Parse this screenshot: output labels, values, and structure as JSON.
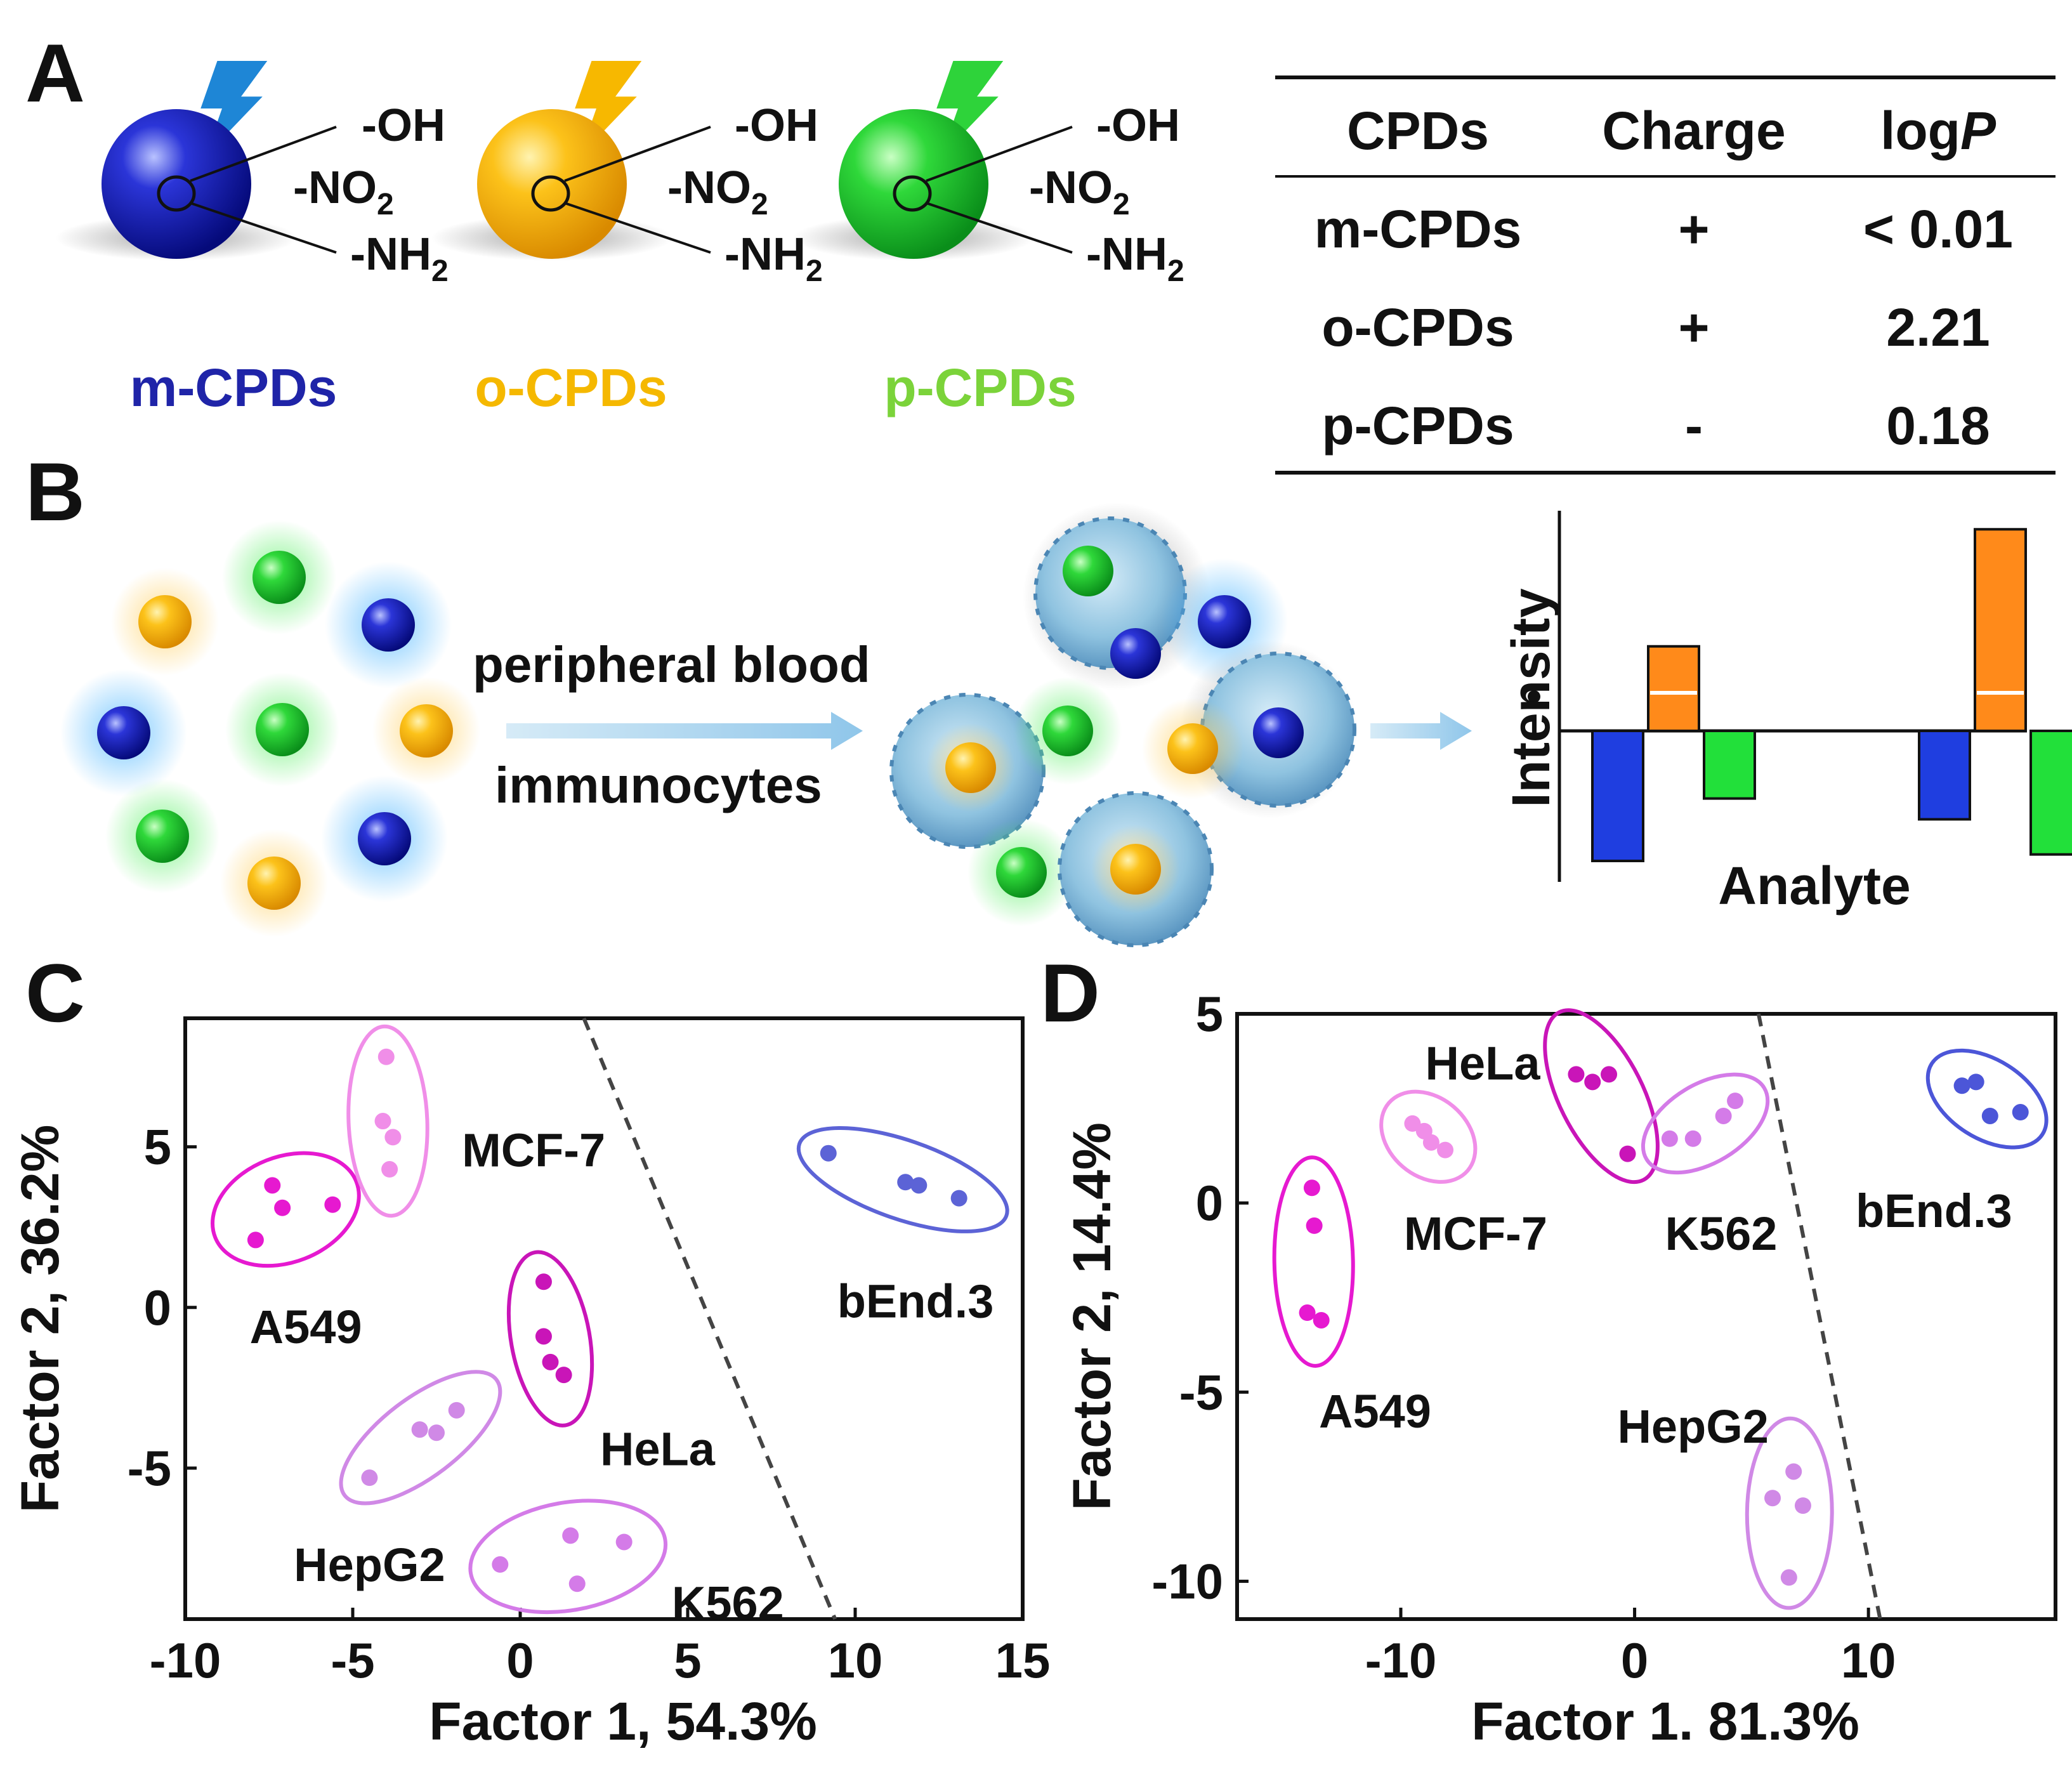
{
  "panels": {
    "a": "A",
    "b": "B",
    "c": "C",
    "d": "D"
  },
  "groups": {
    "oh": "-OH",
    "no2": "-NO",
    "nh2": "-NH",
    "sub": "2"
  },
  "probes": [
    {
      "name": "m-CPDs",
      "color": "#1f24a8"
    },
    {
      "name": "o-CPDs",
      "color": "#f5b800"
    },
    {
      "name": "p-CPDs",
      "color": "#7bd33a"
    }
  ],
  "table": {
    "headers": {
      "cpds": "CPDs",
      "charge": "Charge",
      "logp_prefix": "log",
      "logp_italic": "P"
    },
    "rows": [
      {
        "name": "m-CPDs",
        "color": "#1a29c9",
        "charge": "+",
        "logp": "< 0.01"
      },
      {
        "name": "o-CPDs",
        "color": "#f5b800",
        "charge": "+",
        "logp": "2.21"
      },
      {
        "name": "p-CPDs",
        "color": "#0fbf62",
        "charge": "-",
        "logp": "0.18"
      }
    ]
  },
  "scheme": {
    "flow_label_1": "peripheral blood",
    "flow_label_2": "immunocytes",
    "ylabel": "Intensity",
    "xlabel": "Analyte",
    "bar_colors": {
      "m": "#1f3ee0",
      "o": "#ff8a1a",
      "p": "#22e03a"
    },
    "mini_bars": [
      {
        "group": 1,
        "m": -1.0,
        "o": 0.65,
        "p": -0.52
      },
      {
        "group": 2,
        "m": -0.68,
        "o": 1.55,
        "p": -0.95
      }
    ]
  },
  "chart_data": [
    {
      "type": "scatter",
      "panel": "C",
      "xlabel": "Factor 1, 54.3%",
      "ylabel": "Factor 2, 36.2%",
      "xlim": [
        -10,
        15
      ],
      "ylim": [
        -9.7,
        9
      ],
      "xticks": [
        "-10",
        "-5",
        "0",
        "5",
        "10",
        "15"
      ],
      "yticks": [
        "-5",
        "0",
        "5"
      ],
      "yticks_values": [
        -5,
        0,
        5
      ],
      "xticks_values": [
        -10,
        -5,
        0,
        5,
        10,
        15
      ],
      "divider": {
        "x1": 1.9,
        "y1": 9,
        "x2": 9.4,
        "y2": -9.7
      },
      "series": [
        {
          "name": "A549",
          "color": "#e619d0",
          "points": [
            [
              -7.4,
              3.8
            ],
            [
              -7.1,
              3.1
            ],
            [
              -5.6,
              3.2
            ],
            [
              -7.9,
              2.1
            ]
          ]
        },
        {
          "name": "MCF-7",
          "color": "#f08ee8",
          "points": [
            [
              -4.0,
              7.8
            ],
            [
              -4.1,
              5.8
            ],
            [
              -3.8,
              5.3
            ],
            [
              -3.9,
              4.3
            ]
          ]
        },
        {
          "name": "bEnd.3",
          "color": "#5c63d6",
          "points": [
            [
              9.2,
              4.8
            ],
            [
              11.5,
              3.9
            ],
            [
              11.9,
              3.8
            ],
            [
              13.1,
              3.4
            ]
          ]
        },
        {
          "name": "HeLa",
          "color": "#c915b8",
          "points": [
            [
              0.7,
              0.8
            ],
            [
              0.7,
              -0.9
            ],
            [
              0.9,
              -1.7
            ],
            [
              1.3,
              -2.1
            ]
          ]
        },
        {
          "name": "HepG2",
          "color": "#d089e6",
          "points": [
            [
              -1.9,
              -3.2
            ],
            [
              -3.0,
              -3.8
            ],
            [
              -2.5,
              -3.9
            ],
            [
              -4.5,
              -5.3
            ]
          ]
        },
        {
          "name": "K562",
          "color": "#d47be8",
          "points": [
            [
              -0.6,
              -8.0
            ],
            [
              1.5,
              -7.1
            ],
            [
              3.1,
              -7.3
            ],
            [
              1.7,
              -8.6
            ]
          ]
        }
      ],
      "labels": [
        {
          "text": "A549",
          "x": -6.4,
          "y": -0.6
        },
        {
          "text": "MCF-7",
          "x": 0.4,
          "y": 4.9
        },
        {
          "text": "bEnd.3",
          "x": 11.8,
          "y": 0.2
        },
        {
          "text": "HeLa",
          "x": 4.1,
          "y": -4.4
        },
        {
          "text": "HepG2",
          "x": -4.5,
          "y": -8.0
        },
        {
          "text": "K562",
          "x": 6.2,
          "y": -9.2
        }
      ]
    },
    {
      "type": "scatter",
      "panel": "D",
      "xlabel": "Factor 1. 81.3%",
      "ylabel": "Factor 2, 14.4%",
      "xlim": [
        -17,
        18
      ],
      "ylim": [
        -11,
        5
      ],
      "xticks": [
        "-10",
        "0",
        "10"
      ],
      "xticks_values": [
        -10,
        0,
        10
      ],
      "yticks": [
        "-10",
        "-5",
        "0",
        "5"
      ],
      "yticks_values": [
        -10,
        -5,
        0,
        5
      ],
      "divider": {
        "x1": 5.3,
        "y1": 5,
        "x2": 10.5,
        "y2": -11
      },
      "series": [
        {
          "name": "A549",
          "color": "#e619d0",
          "points": [
            [
              -13.8,
              0.4
            ],
            [
              -13.7,
              -0.6
            ],
            [
              -14.0,
              -2.9
            ],
            [
              -13.4,
              -3.1
            ]
          ]
        },
        {
          "name": "MCF-7",
          "color": "#f08ee8",
          "points": [
            [
              -9.5,
              2.1
            ],
            [
              -9.0,
              1.9
            ],
            [
              -8.7,
              1.6
            ],
            [
              -8.1,
              1.4
            ]
          ]
        },
        {
          "name": "HeLa",
          "color": "#c915b8",
          "points": [
            [
              -2.5,
              3.4
            ],
            [
              -1.8,
              3.2
            ],
            [
              -1.1,
              3.4
            ],
            [
              -0.3,
              1.3
            ]
          ]
        },
        {
          "name": "K562",
          "color": "#d47be8",
          "points": [
            [
              4.3,
              2.7
            ],
            [
              3.8,
              2.3
            ],
            [
              1.5,
              1.7
            ],
            [
              2.5,
              1.7
            ]
          ]
        },
        {
          "name": "bEnd.3",
          "color": "#4c56d8",
          "points": [
            [
              14.0,
              3.1
            ],
            [
              14.6,
              3.2
            ],
            [
              15.2,
              2.3
            ],
            [
              16.5,
              2.4
            ]
          ]
        },
        {
          "name": "HepG2",
          "color": "#d089e6",
          "points": [
            [
              5.9,
              -7.8
            ],
            [
              6.8,
              -7.1
            ],
            [
              7.2,
              -8.0
            ],
            [
              6.6,
              -9.9
            ]
          ]
        }
      ],
      "labels": [
        {
          "text": "HeLa",
          "x": -6.5,
          "y": 3.7
        },
        {
          "text": "MCF-7",
          "x": -6.8,
          "y": -0.8
        },
        {
          "text": "K562",
          "x": 3.7,
          "y": -0.8
        },
        {
          "text": "bEnd.3",
          "x": 12.8,
          "y": -0.2
        },
        {
          "text": "A549",
          "x": -11.1,
          "y": -5.5
        },
        {
          "text": "HepG2",
          "x": 2.5,
          "y": -5.9
        }
      ]
    }
  ]
}
